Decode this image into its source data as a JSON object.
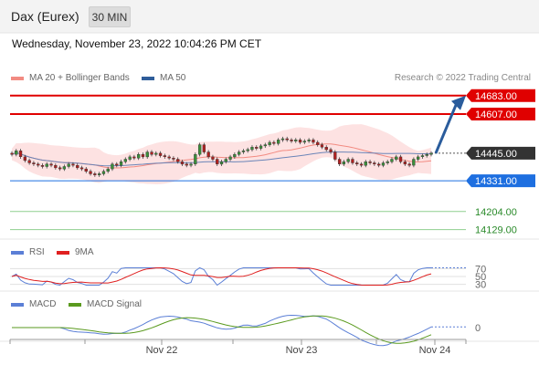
{
  "header": {
    "instrument": "Dax (Eurex)",
    "interval": "30 MIN"
  },
  "datetime": "Wednesday, November 23, 2022 10:04:26 PM CET",
  "price_legend": [
    {
      "label": "MA 20 + Bollinger Bands",
      "color": "#f28b82"
    },
    {
      "label": "MA 50",
      "color": "#2f5d9a"
    }
  ],
  "credit": "Research © 2022 Trading Central",
  "rsi_legend": [
    {
      "label": "RSI",
      "color": "#5b7fd6"
    },
    {
      "label": "9MA",
      "color": "#e02020"
    }
  ],
  "macd_legend": [
    {
      "label": "MACD",
      "color": "#5b7fd6"
    },
    {
      "label": "MACD Signal",
      "color": "#5a9a1e"
    }
  ],
  "colors": {
    "bull": "#3a8f3a",
    "bear": "#b02020",
    "resistance": "#e00000",
    "pivot": "#1e6fe0",
    "support": "#2a8a2a",
    "arrow": "#2a5c9c"
  },
  "chart_data": {
    "type": "candlestick",
    "x_tick_labels": [
      "Nov 22",
      "Nov 23",
      "Nov 24"
    ],
    "price": {
      "last": 14445.0,
      "last_label": "14445.00",
      "ylim": [
        14090,
        14720
      ],
      "levels": [
        {
          "value": 14683.0,
          "label": "14683.00",
          "kind": "resistance"
        },
        {
          "value": 14607.0,
          "label": "14607.00",
          "kind": "resistance"
        },
        {
          "value": 14331.0,
          "label": "14331.00",
          "kind": "pivot"
        },
        {
          "value": 14204.0,
          "label": "14204.00",
          "kind": "support"
        },
        {
          "value": 14129.0,
          "label": "14129.00",
          "kind": "support"
        }
      ],
      "target_arrow": {
        "from": 14445,
        "to": 14683
      },
      "closes": [
        14440,
        14455,
        14430,
        14415,
        14405,
        14400,
        14395,
        14390,
        14400,
        14395,
        14385,
        14380,
        14390,
        14400,
        14395,
        14385,
        14380,
        14370,
        14360,
        14355,
        14360,
        14370,
        14380,
        14400,
        14395,
        14410,
        14420,
        14430,
        14425,
        14440,
        14430,
        14450,
        14440,
        14445,
        14435,
        14430,
        14425,
        14420,
        14410,
        14400,
        14395,
        14400,
        14440,
        14480,
        14450,
        14430,
        14420,
        14400,
        14410,
        14420,
        14430,
        14440,
        14450,
        14455,
        14460,
        14470,
        14465,
        14475,
        14480,
        14490,
        14485,
        14500,
        14505,
        14500,
        14495,
        14500,
        14490,
        14495,
        14500,
        14490,
        14480,
        14470,
        14460,
        14450,
        14420,
        14400,
        14410,
        14420,
        14405,
        14400,
        14395,
        14410,
        14405,
        14400,
        14395,
        14405,
        14410,
        14420,
        14430,
        14410,
        14400,
        14395,
        14420,
        14430,
        14435,
        14440,
        14445
      ]
    },
    "rsi": {
      "levels": [
        70,
        50,
        30
      ],
      "ylim": [
        20,
        80
      ]
    },
    "macd": {
      "levels": [
        0
      ],
      "zero_label": "0"
    }
  }
}
